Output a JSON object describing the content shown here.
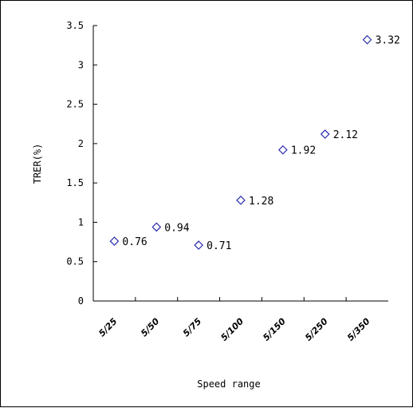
{
  "chart_data": {
    "type": "scatter",
    "categories": [
      "5/25",
      "5/50",
      "5/75",
      "5/100",
      "5/150",
      "5/250",
      "5/350"
    ],
    "values": [
      0.76,
      0.94,
      0.71,
      1.28,
      1.92,
      2.12,
      3.32
    ],
    "data_labels": [
      "0.76",
      "0.94",
      "0.71",
      "1.28",
      "1.92",
      "2.12",
      "3.32"
    ],
    "xlabel": "Speed range",
    "ylabel": "TRER(%)",
    "ylim": [
      0,
      3.5
    ],
    "yticks": [
      "0",
      "0.5",
      "1",
      "1.5",
      "2",
      "2.5",
      "3",
      "3.5"
    ],
    "marker": "diamond",
    "marker_color": "#2b2bb0",
    "grid": false,
    "legend": "none"
  }
}
